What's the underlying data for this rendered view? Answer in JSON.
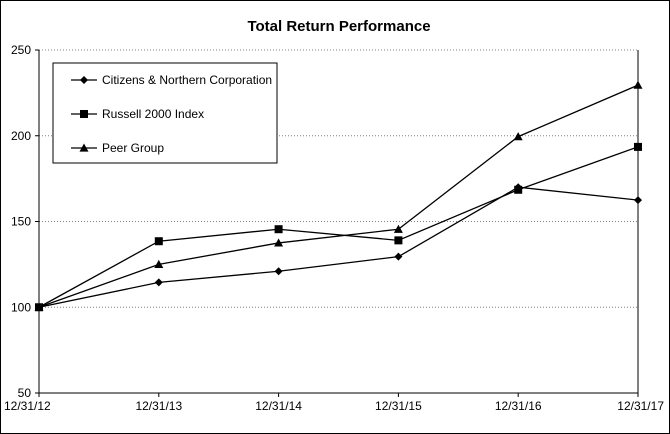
{
  "chart_data": {
    "type": "line",
    "title": "Total Return Performance",
    "xlabel": "",
    "ylabel": "",
    "categories": [
      "12/31/12",
      "12/31/13",
      "12/31/14",
      "12/31/15",
      "12/31/16",
      "12/31/17"
    ],
    "ylim": [
      50,
      250
    ],
    "yticks": [
      50,
      100,
      150,
      200,
      250
    ],
    "grid": true,
    "legend_position": "top-left",
    "series": [
      {
        "name": "Citizens & Northern Corporation",
        "marker": "diamond",
        "color": "#000000",
        "values": [
          100,
          114.5,
          121,
          129.5,
          170,
          162.5
        ]
      },
      {
        "name": "Russell 2000 Index",
        "marker": "square",
        "color": "#000000",
        "values": [
          100,
          138.5,
          145.5,
          139,
          168.5,
          193.5
        ]
      },
      {
        "name": "Peer Group",
        "marker": "triangle",
        "color": "#000000",
        "values": [
          100,
          125,
          137.5,
          145.5,
          199.5,
          229.5
        ]
      }
    ]
  }
}
